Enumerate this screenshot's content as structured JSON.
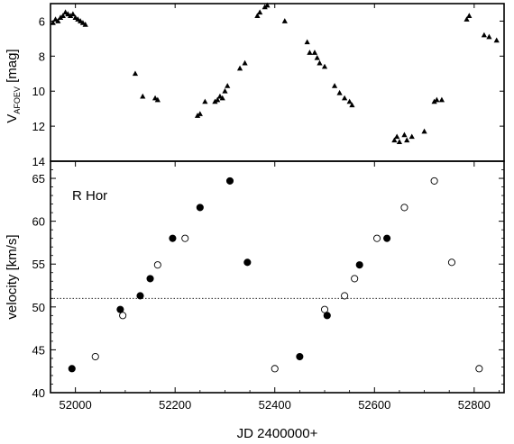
{
  "chart_data": [
    {
      "type": "scatter",
      "panel": "top",
      "ylabel_main": "V",
      "ylabel_sub": "AFOEV",
      "ylabel_unit": " [mag]",
      "y_inverted": true,
      "ylim": [
        14,
        5
      ],
      "xlim": [
        51950,
        52860
      ],
      "y_ticks": [
        6,
        8,
        10,
        12,
        14
      ],
      "marker": "filled-triangle",
      "series": [
        {
          "points": [
            [
              51955,
              6.1
            ],
            [
              51960,
              5.9
            ],
            [
              51965,
              6.0
            ],
            [
              51970,
              5.8
            ],
            [
              51975,
              5.7
            ],
            [
              51980,
              5.5
            ],
            [
              51985,
              5.6
            ],
            [
              51990,
              5.7
            ],
            [
              51995,
              5.6
            ],
            [
              52000,
              5.8
            ],
            [
              52005,
              5.9
            ],
            [
              52010,
              6.0
            ],
            [
              52015,
              6.1
            ],
            [
              52020,
              6.2
            ],
            [
              52120,
              9.0
            ],
            [
              52135,
              10.3
            ],
            [
              52160,
              10.4
            ],
            [
              52165,
              10.5
            ],
            [
              52245,
              11.4
            ],
            [
              52250,
              11.3
            ],
            [
              52260,
              10.6
            ],
            [
              52280,
              10.6
            ],
            [
              52285,
              10.5
            ],
            [
              52290,
              10.3
            ],
            [
              52295,
              10.4
            ],
            [
              52300,
              10.0
            ],
            [
              52305,
              9.7
            ],
            [
              52330,
              8.7
            ],
            [
              52340,
              8.4
            ],
            [
              52365,
              5.7
            ],
            [
              52370,
              5.5
            ],
            [
              52380,
              5.2
            ],
            [
              52385,
              5.1
            ],
            [
              52420,
              6.0
            ],
            [
              52465,
              7.2
            ],
            [
              52470,
              7.8
            ],
            [
              52480,
              7.8
            ],
            [
              52485,
              8.1
            ],
            [
              52490,
              8.4
            ],
            [
              52500,
              8.6
            ],
            [
              52520,
              9.7
            ],
            [
              52530,
              10.1
            ],
            [
              52540,
              10.4
            ],
            [
              52550,
              10.6
            ],
            [
              52555,
              10.8
            ],
            [
              52640,
              12.8
            ],
            [
              52645,
              12.6
            ],
            [
              52650,
              12.9
            ],
            [
              52660,
              12.5
            ],
            [
              52665,
              12.8
            ],
            [
              52675,
              12.6
            ],
            [
              52700,
              12.3
            ],
            [
              52720,
              10.6
            ],
            [
              52725,
              10.5
            ],
            [
              52735,
              10.5
            ],
            [
              52785,
              5.9
            ],
            [
              52790,
              5.7
            ],
            [
              52820,
              6.8
            ],
            [
              52830,
              6.9
            ],
            [
              52845,
              7.1
            ]
          ]
        }
      ]
    },
    {
      "type": "scatter",
      "panel": "bottom",
      "title": "R Hor",
      "xlabel": "JD 2400000+",
      "ylabel": "velocity [km/s]",
      "xlim": [
        51950,
        52860
      ],
      "ylim": [
        40,
        67
      ],
      "x_ticks": [
        52000,
        52200,
        52400,
        52600,
        52800
      ],
      "y_ticks": [
        40,
        45,
        50,
        55,
        60,
        65
      ],
      "reference_line": {
        "y": 51.0,
        "style": "dotted"
      },
      "series": [
        {
          "marker": "filled-circle",
          "points": [
            [
              51993,
              42.8
            ],
            [
              52090,
              49.7
            ],
            [
              52130,
              51.3
            ],
            [
              52150,
              53.3
            ],
            [
              52195,
              58.0
            ],
            [
              52250,
              61.6
            ],
            [
              52310,
              64.7
            ],
            [
              52345,
              55.2
            ],
            [
              52450,
              44.2
            ],
            [
              52505,
              49.0
            ],
            [
              52570,
              54.9
            ],
            [
              52625,
              58.0
            ]
          ]
        },
        {
          "marker": "open-circle",
          "points": [
            [
              52040,
              44.2
            ],
            [
              52095,
              49.0
            ],
            [
              52165,
              54.9
            ],
            [
              52220,
              58.0
            ],
            [
              52400,
              42.8
            ],
            [
              52500,
              49.7
            ],
            [
              52540,
              51.3
            ],
            [
              52560,
              53.3
            ],
            [
              52605,
              58.0
            ],
            [
              52660,
              61.6
            ],
            [
              52720,
              64.7
            ],
            [
              52755,
              55.2
            ],
            [
              52810,
              42.8
            ]
          ]
        }
      ]
    }
  ]
}
